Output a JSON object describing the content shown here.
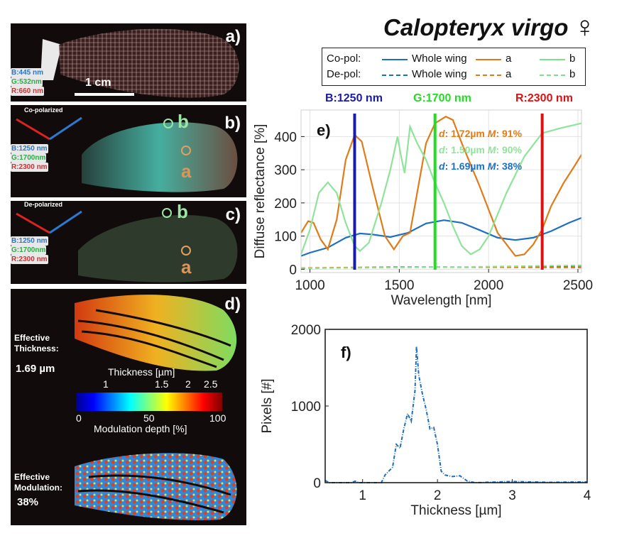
{
  "title": {
    "species": "Calopteryx virgo",
    "sex_symbol": "♀"
  },
  "legend": {
    "rows": [
      {
        "label": "Co-pol:",
        "entries": [
          "Whole wing",
          "a",
          "b"
        ],
        "style": "solid"
      },
      {
        "label": "De-pol:",
        "entries": [
          "Whole wing",
          "a",
          "b"
        ],
        "style": "dashed"
      }
    ],
    "colors": {
      "whole_wing": "#1f6fc0",
      "a": "#e07b1a",
      "b": "#7ee08a"
    }
  },
  "panels": {
    "a": {
      "label": "a)",
      "bands": [
        "B:445 nm",
        "G:532nm",
        "R:660 nm"
      ],
      "scale_bar": "1 cm"
    },
    "b": {
      "label": "b)",
      "mode": "Co-polarized",
      "bands": [
        "B:1250 nm",
        "G:1700nm",
        "R:2300 nm"
      ],
      "points": [
        "b",
        "a"
      ]
    },
    "c": {
      "label": "c)",
      "mode": "De-polarized",
      "bands": [
        "B:1250 nm",
        "G:1700nm",
        "R:2300 nm"
      ],
      "points": [
        "b",
        "a"
      ]
    },
    "d": {
      "label": "d)",
      "thickness_label": "Effective Thickness:",
      "thickness_value": "1.69 µm",
      "modulation_label": "Effective Modulation:",
      "modulation_value": "38%",
      "colorbar": {
        "top_title": "Thickness [µm]",
        "top_ticks": [
          "1",
          "1.5",
          "2",
          "2.5"
        ],
        "bottom_ticks": [
          "0",
          "50",
          "100"
        ],
        "bottom_title": "Modulation depth [%]"
      }
    }
  },
  "band_colors": {
    "B": "#1a1aa8",
    "G": "#22dd22",
    "R": "#dd1111"
  },
  "chart_data": [
    {
      "type": "line",
      "panel_label": "e)",
      "xlabel": "Wavelength [nm]",
      "ylabel": "Diffuse reflectance [%]",
      "xlim": [
        950,
        2520
      ],
      "ylim": [
        -10,
        480
      ],
      "xticks": [
        1000,
        1500,
        2000,
        2500
      ],
      "yticks": [
        0,
        100,
        200,
        300,
        400
      ],
      "grid": true,
      "vertical_markers": [
        {
          "label": "B:1250 nm",
          "x": 1250,
          "color": "#1a1aa8"
        },
        {
          "label": "G:1700 nm",
          "x": 1700,
          "color": "#22dd22"
        },
        {
          "label": "R:2300 nm",
          "x": 2300,
          "color": "#dd1111"
        }
      ],
      "annotations": [
        {
          "d": "1.72µm",
          "M": "91%",
          "color": "#e07b1a"
        },
        {
          "d": "1.50µm",
          "M": "90%",
          "color": "#8fe39a"
        },
        {
          "d": "1.69µm",
          "M": "38%",
          "color": "#1f6fc0"
        }
      ],
      "series": [
        {
          "name": "Co-pol: Whole wing",
          "style": "solid",
          "color": "#1f6fc0",
          "x": [
            950,
            1000,
            1100,
            1200,
            1280,
            1350,
            1450,
            1550,
            1650,
            1750,
            1850,
            1950,
            2050,
            2150,
            2250,
            2350,
            2450,
            2520
          ],
          "y": [
            40,
            50,
            65,
            95,
            108,
            105,
            97,
            110,
            138,
            148,
            140,
            118,
            95,
            88,
            95,
            115,
            140,
            155
          ]
        },
        {
          "name": "Co-pol: a",
          "style": "solid",
          "color": "#e07b1a",
          "x": [
            950,
            990,
            1020,
            1060,
            1100,
            1150,
            1200,
            1250,
            1290,
            1350,
            1420,
            1470,
            1520,
            1560,
            1600,
            1650,
            1700,
            1760,
            1800,
            1850,
            1950,
            2050,
            2150,
            2200,
            2250,
            2300,
            2350,
            2420,
            2480,
            2520
          ],
          "y": [
            110,
            145,
            140,
            90,
            60,
            150,
            330,
            405,
            385,
            250,
            100,
            60,
            100,
            110,
            230,
            380,
            440,
            460,
            450,
            380,
            250,
            110,
            40,
            45,
            75,
            120,
            190,
            260,
            310,
            345
          ]
        },
        {
          "name": "Co-pol: b",
          "style": "solid",
          "color": "#8fe39a",
          "x": [
            950,
            1000,
            1050,
            1100,
            1150,
            1200,
            1250,
            1280,
            1330,
            1400,
            1450,
            1490,
            1510,
            1530,
            1560,
            1600,
            1650,
            1700,
            1750,
            1800,
            1850,
            1900,
            1950,
            2000,
            2100,
            2200,
            2300,
            2400,
            2520
          ],
          "y": [
            45,
            120,
            230,
            262,
            230,
            140,
            70,
            55,
            80,
            200,
            300,
            400,
            340,
            290,
            430,
            380,
            330,
            260,
            200,
            130,
            70,
            45,
            60,
            100,
            230,
            340,
            410,
            425,
            440
          ]
        },
        {
          "name": "De-pol: Whole wing",
          "style": "dashed",
          "color": "#1f6fc0",
          "x": [
            950,
            1500,
            2000,
            2520
          ],
          "y": [
            3,
            6,
            7,
            10
          ]
        },
        {
          "name": "De-pol: a",
          "style": "dashed",
          "color": "#e07b1a",
          "x": [
            950,
            1500,
            2000,
            2520
          ],
          "y": [
            4,
            7,
            6,
            5
          ]
        },
        {
          "name": "De-pol: b",
          "style": "dashed",
          "color": "#8fe39a",
          "x": [
            950,
            1500,
            2000,
            2520
          ],
          "y": [
            3,
            5,
            8,
            12
          ]
        }
      ]
    },
    {
      "type": "line",
      "panel_label": "f)",
      "xlabel": "Thickness [µm]",
      "ylabel": "Pixels [#]",
      "xlim": [
        0.5,
        4
      ],
      "ylim": [
        0,
        2000
      ],
      "xticks": [
        1,
        2,
        3,
        4
      ],
      "yticks": [
        0,
        1000,
        2000
      ],
      "grid": false,
      "series": [
        {
          "style": "dash-dot",
          "color": "#1f6fc0",
          "x": [
            0.5,
            0.55,
            0.85,
            0.9,
            0.95,
            1.25,
            1.3,
            1.4,
            1.45,
            1.5,
            1.55,
            1.6,
            1.65,
            1.7,
            1.72,
            1.75,
            1.8,
            1.85,
            1.9,
            1.95,
            2.0,
            2.05,
            2.1,
            2.2,
            2.3,
            2.4,
            2.5,
            3.0,
            3.5,
            4.0
          ],
          "y": [
            30,
            0,
            0,
            20,
            0,
            0,
            100,
            200,
            500,
            450,
            700,
            900,
            800,
            1200,
            1780,
            1400,
            1150,
            950,
            700,
            720,
            500,
            150,
            100,
            80,
            90,
            20,
            0,
            15,
            5,
            10
          ]
        }
      ]
    }
  ]
}
